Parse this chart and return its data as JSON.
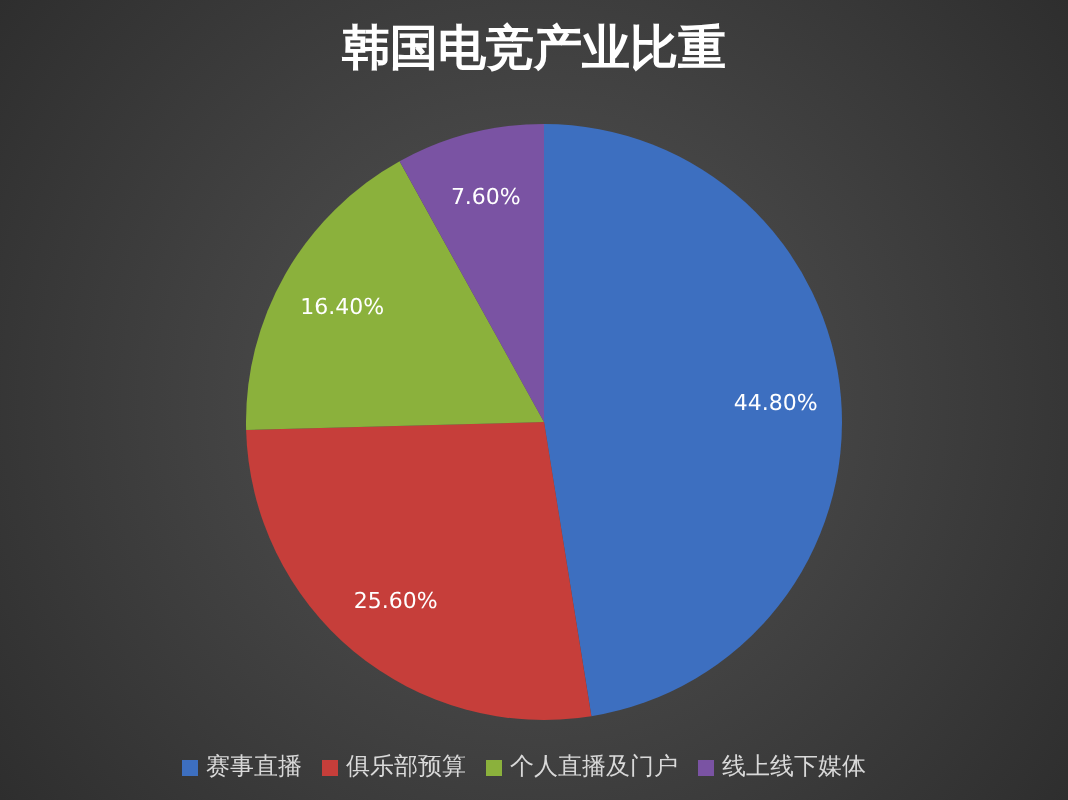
{
  "chart_data": {
    "type": "pie",
    "title": "韩国电竞产业比重",
    "categories": [
      "赛事直播",
      "俱乐部预算",
      "个人直播及门户",
      "线上线下媒体"
    ],
    "values": [
      44.8,
      25.6,
      16.4,
      7.6
    ],
    "value_labels": [
      "44.80%",
      "25.60%",
      "16.40%",
      "7.60%"
    ],
    "colors": [
      "#3d6fc0",
      "#c63e3a",
      "#8bb13c",
      "#7a53a3"
    ],
    "legend": "bottom"
  }
}
